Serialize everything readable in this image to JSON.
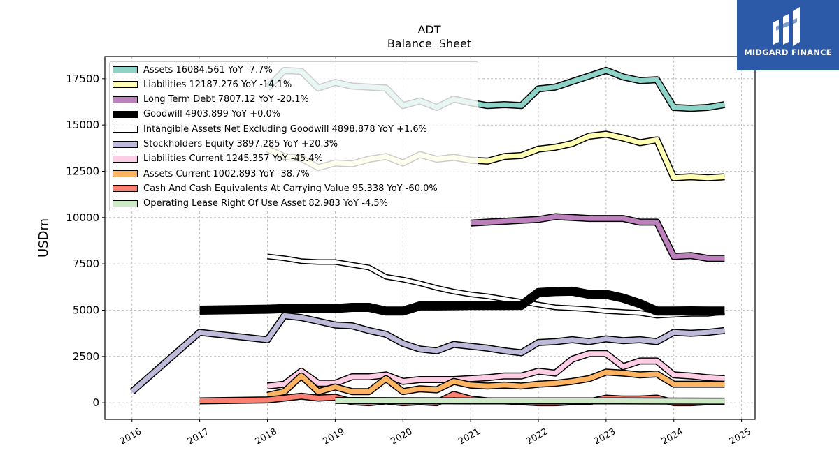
{
  "brand": {
    "name": "MIDGARD FINANCE"
  },
  "chart_data": {
    "type": "line",
    "title": "ADT",
    "subtitle": "Balance  Sheet",
    "ylabel": "USDm",
    "xlabel": "",
    "xlim": [
      2015.6,
      2025.2
    ],
    "ylim": [
      -900,
      18700
    ],
    "xticks": [
      "2016",
      "2017",
      "2018",
      "2019",
      "2020",
      "2021",
      "2022",
      "2023",
      "2024",
      "2025"
    ],
    "yticks": [
      "0",
      "2500",
      "5000",
      "7500",
      "10000",
      "12500",
      "15000",
      "17500"
    ],
    "grid": true,
    "legend_position": "top-left",
    "series": [
      {
        "name": "Assets",
        "legend": "Assets  16084.561 YoY -7.7%",
        "color": "#8dd3c7",
        "width": 7,
        "x": [
          2018.0,
          2018.25,
          2018.5,
          2018.75,
          2019.0,
          2019.25,
          2019.5,
          2019.75,
          2020.0,
          2020.25,
          2020.5,
          2020.75,
          2021.0,
          2021.25,
          2021.5,
          2021.75,
          2022.0,
          2022.25,
          2022.5,
          2022.75,
          2023.0,
          2023.25,
          2023.5,
          2023.75,
          2024.0,
          2024.25,
          2024.5,
          2024.75
        ],
        "y": [
          17000,
          17950,
          17900,
          17000,
          17300,
          17100,
          17050,
          17000,
          16050,
          16300,
          15950,
          16400,
          16200,
          16050,
          16100,
          16050,
          16950,
          17050,
          17350,
          17650,
          17950,
          17600,
          17400,
          17450,
          15950,
          15900,
          15950,
          16100
        ]
      },
      {
        "name": "Liabilities",
        "legend": "Liabilities  12187.276 YoY -14.1%",
        "color": "#ffffb3",
        "width": 7,
        "x": [
          2018.0,
          2018.25,
          2018.5,
          2018.75,
          2019.0,
          2019.25,
          2019.5,
          2019.75,
          2020.0,
          2020.25,
          2020.5,
          2020.75,
          2021.0,
          2021.25,
          2021.5,
          2021.75,
          2022.0,
          2022.25,
          2022.5,
          2022.75,
          2023.0,
          2023.25,
          2023.5,
          2023.75,
          2024.0,
          2024.25,
          2024.5,
          2024.75
        ],
        "y": [
          13700,
          13300,
          13200,
          12700,
          12950,
          12900,
          13150,
          13300,
          12950,
          13400,
          13150,
          13250,
          13100,
          13050,
          13300,
          13350,
          13700,
          13800,
          14000,
          14400,
          14500,
          14300,
          14050,
          14200,
          12150,
          12200,
          12150,
          12200
        ]
      },
      {
        "name": "Long Term Debt",
        "legend": "Long Term Debt  7807.12 YoY -20.1%",
        "color": "#bc80bd",
        "width": 7,
        "x": [
          2021.0,
          2021.25,
          2021.5,
          2021.75,
          2022.0,
          2022.25,
          2022.5,
          2022.75,
          2023.0,
          2023.25,
          2023.5,
          2023.75,
          2024.0,
          2024.25,
          2024.5,
          2024.75
        ],
        "y": [
          9700,
          9750,
          9800,
          9850,
          9900,
          10050,
          10000,
          9950,
          9950,
          9950,
          9750,
          9750,
          7900,
          7950,
          7800,
          7800
        ]
      },
      {
        "name": "Goodwill",
        "legend": "Goodwill  4903.899 YoY +0.0%",
        "color": "#000000",
        "width": 10,
        "x": [
          2017.0,
          2018.0,
          2018.25,
          2018.5,
          2018.75,
          2019.0,
          2019.25,
          2019.5,
          2019.75,
          2020.0,
          2020.25,
          2020.5,
          2020.75,
          2021.0,
          2021.25,
          2021.5,
          2021.75,
          2022.0,
          2022.25,
          2022.5,
          2022.75,
          2023.0,
          2023.25,
          2023.5,
          2023.75,
          2024.0,
          2024.25,
          2024.5,
          2024.75
        ],
        "y": [
          5000,
          5050,
          5080,
          5080,
          5090,
          5090,
          5150,
          5150,
          4950,
          4950,
          5230,
          5230,
          5240,
          5250,
          5250,
          5250,
          5260,
          5950,
          6000,
          6020,
          5850,
          5850,
          5650,
          5350,
          4950,
          4950,
          4960,
          4950,
          4950
        ]
      },
      {
        "name": "Intangible Assets Net Excluding Goodwill",
        "legend": "Intangible Assets Net Excluding Goodwill  4898.878 YoY +1.6%",
        "color": "#ffffff",
        "width": 5,
        "x": [
          2018.0,
          2018.25,
          2018.5,
          2018.75,
          2019.0,
          2019.25,
          2019.5,
          2019.75,
          2020.0,
          2020.25,
          2020.5,
          2020.75,
          2021.0,
          2021.25,
          2021.5,
          2021.75,
          2022.0,
          2022.25,
          2022.5,
          2022.75,
          2023.0,
          2023.25,
          2023.5,
          2023.75,
          2024.0,
          2024.25,
          2024.5,
          2024.75
        ],
        "y": [
          7900,
          7800,
          7650,
          7600,
          7600,
          7450,
          7300,
          6800,
          6650,
          6450,
          6200,
          6000,
          5850,
          5750,
          5600,
          5450,
          5300,
          5150,
          5100,
          5050,
          4950,
          4900,
          4850,
          4700,
          4750,
          4800,
          4800,
          4900
        ]
      },
      {
        "name": "Stockholders Equity",
        "legend": "Stockholders Equity  3897.285 YoY +20.3%",
        "color": "#bebada",
        "width": 7,
        "x": [
          2016.0,
          2017.0,
          2018.0,
          2018.25,
          2018.5,
          2018.75,
          2019.0,
          2019.25,
          2019.5,
          2019.75,
          2020.0,
          2020.25,
          2020.5,
          2020.75,
          2021.0,
          2021.25,
          2021.5,
          2021.75,
          2022.0,
          2022.25,
          2022.5,
          2022.75,
          2023.0,
          2023.25,
          2023.5,
          2023.75,
          2024.0,
          2024.25,
          2024.5,
          2024.75
        ],
        "y": [
          600,
          3800,
          3400,
          4700,
          4600,
          4400,
          4200,
          4150,
          3900,
          3700,
          3200,
          2900,
          2800,
          3150,
          3050,
          2950,
          2800,
          2700,
          3250,
          3300,
          3400,
          3300,
          3450,
          3350,
          3400,
          3300,
          3800,
          3750,
          3800,
          3900
        ]
      },
      {
        "name": "Liabilities Current",
        "legend": "Liabilities Current  1245.357 YoY -45.4%",
        "color": "#fccde5",
        "width": 7,
        "x": [
          2018.0,
          2018.25,
          2018.5,
          2018.75,
          2019.0,
          2019.25,
          2019.5,
          2019.75,
          2020.0,
          2020.25,
          2020.5,
          2020.75,
          2021.0,
          2021.25,
          2021.5,
          2021.75,
          2022.0,
          2022.25,
          2022.5,
          2022.75,
          2023.0,
          2023.25,
          2023.5,
          2023.75,
          2024.0,
          2024.25,
          2024.5,
          2024.75
        ],
        "y": [
          900,
          1000,
          1700,
          1050,
          1050,
          1400,
          1400,
          1500,
          1150,
          1250,
          1250,
          1250,
          1300,
          1350,
          1450,
          1450,
          1700,
          1600,
          2350,
          2650,
          2650,
          1950,
          2250,
          2250,
          1500,
          1450,
          1350,
          1300
        ]
      },
      {
        "name": "Assets Current",
        "legend": "Assets Current  1002.893 YoY -38.7%",
        "color": "#fdb462",
        "width": 7,
        "x": [
          2018.0,
          2018.25,
          2018.5,
          2018.75,
          2019.0,
          2019.25,
          2019.5,
          2019.75,
          2020.0,
          2020.25,
          2020.5,
          2020.75,
          2021.0,
          2021.25,
          2021.5,
          2021.75,
          2022.0,
          2022.25,
          2022.5,
          2022.75,
          2023.0,
          2023.25,
          2023.5,
          2023.75,
          2024.0,
          2024.25,
          2024.5,
          2024.75
        ],
        "y": [
          400,
          600,
          1450,
          600,
          850,
          600,
          600,
          1300,
          600,
          750,
          700,
          1150,
          950,
          900,
          950,
          900,
          1000,
          1050,
          1150,
          1300,
          1650,
          1600,
          1500,
          1550,
          1000,
          1000,
          1000,
          1000
        ]
      },
      {
        "name": "Cash And Cash Equivalents At Carrying Value",
        "legend": "Cash And Cash Equivalents At Carrying Value  95.338 YoY -60.0%",
        "color": "#fb8072",
        "width": 7,
        "x": [
          2017.0,
          2018.0,
          2018.25,
          2018.5,
          2018.75,
          2019.0,
          2019.25,
          2019.5,
          2019.75,
          2020.0,
          2020.25,
          2020.5,
          2020.75,
          2021.0,
          2021.25,
          2021.5,
          2021.75,
          2022.0,
          2022.25,
          2022.5,
          2022.75,
          2023.0,
          2023.25,
          2023.5,
          2023.75,
          2024.0,
          2024.25,
          2024.5,
          2024.75
        ],
        "y": [
          100,
          150,
          250,
          350,
          250,
          300,
          50,
          0,
          100,
          0,
          50,
          0,
          450,
          200,
          100,
          100,
          50,
          0,
          0,
          50,
          50,
          250,
          200,
          200,
          250,
          0,
          0,
          50,
          50
        ]
      },
      {
        "name": "Operating Lease Right Of Use Asset",
        "legend": "Operating Lease Right Of Use Asset  82.983 YoY -4.5%",
        "color": "#ccebc5",
        "width": 7,
        "x": [
          2019.0,
          2020.0,
          2021.0,
          2022.0,
          2023.0,
          2023.5,
          2024.0,
          2024.75
        ],
        "y": [
          120,
          110,
          100,
          100,
          100,
          95,
          90,
          85
        ]
      }
    ]
  }
}
